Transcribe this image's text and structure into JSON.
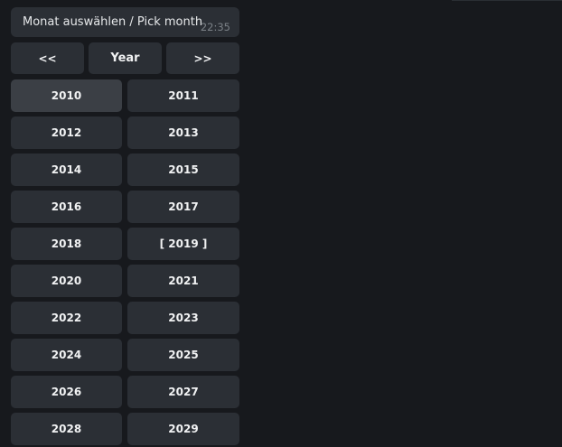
{
  "message": {
    "text": "Monat auswählen / Pick month",
    "time": "22:35"
  },
  "nav": {
    "prev": "<<",
    "year": "Year",
    "next": ">>"
  },
  "years": [
    "2010",
    "2011",
    "2012",
    "2013",
    "2014",
    "2015",
    "2016",
    "2017",
    "2018",
    "[ 2019 ]",
    "2020",
    "2021",
    "2022",
    "2023",
    "2024",
    "2025",
    "2026",
    "2027",
    "2028",
    "2029"
  ],
  "colors": {
    "background": "#17191d",
    "button": "#2b2f35",
    "button_hover": "#3b3f45"
  }
}
